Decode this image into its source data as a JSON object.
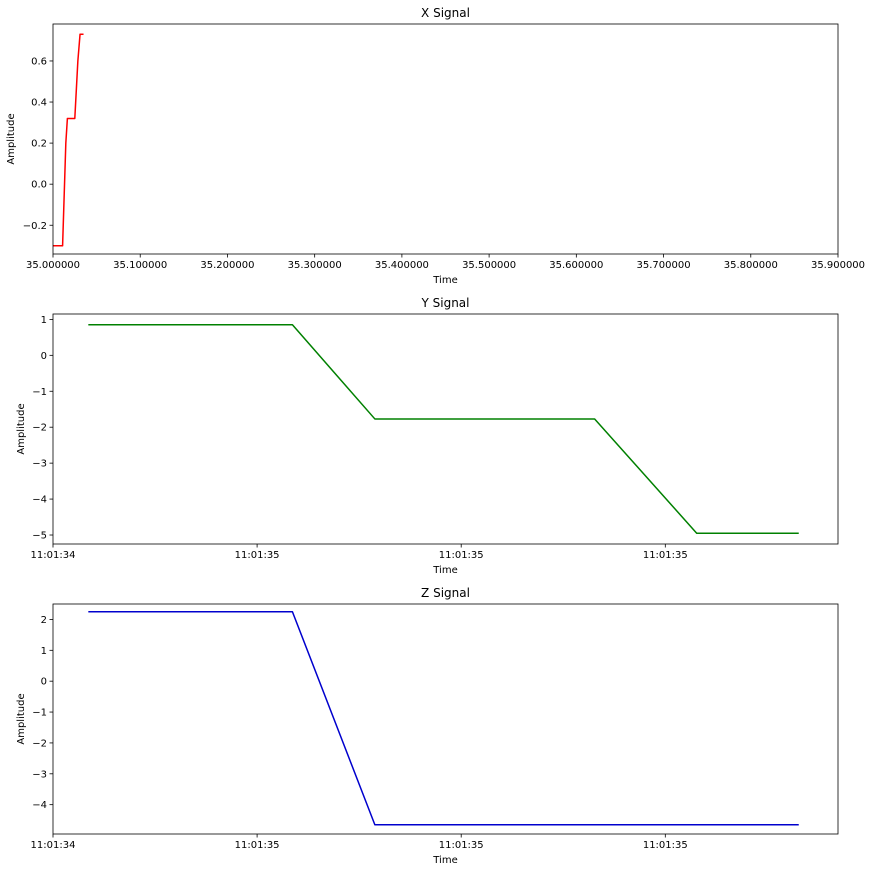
{
  "chart_data": [
    {
      "type": "line",
      "title": "X Signal",
      "xlabel": "Time",
      "ylabel": "Amplitude",
      "xlim": [
        35.0,
        35.9
      ],
      "ylim": [
        -0.34,
        0.78
      ],
      "x_ticks": [
        35.0,
        35.1,
        35.2,
        35.3,
        35.4,
        35.5,
        35.6,
        35.7,
        35.8,
        35.9
      ],
      "x_tick_labels": [
        "35.000000",
        "35.100000",
        "35.200000",
        "35.300000",
        "35.400000",
        "35.500000",
        "35.600000",
        "35.700000",
        "35.800000",
        "35.900000"
      ],
      "y_ticks": [
        -0.2,
        0.0,
        0.2,
        0.4,
        0.6
      ],
      "y_tick_labels": [
        "−0.2",
        "0.0",
        "0.2",
        "0.4",
        "0.6"
      ],
      "grid": false,
      "color": "#ff0000",
      "series": [
        {
          "x": [
            35.0,
            35.011,
            35.0147,
            35.0165,
            35.025,
            35.0285,
            35.031,
            35.035
          ],
          "y": [
            -0.3,
            -0.3,
            0.2,
            0.32,
            0.32,
            0.6,
            0.73,
            0.73
          ]
        }
      ]
    },
    {
      "type": "line",
      "title": "Y Signal",
      "xlabel": "Time",
      "ylabel": "Amplitude",
      "xlim": [
        0.0,
        1.0
      ],
      "ylim": [
        -5.25,
        1.15
      ],
      "x_ticks": [
        0.0,
        0.26,
        0.52,
        0.78
      ],
      "x_tick_labels": [
        "11:01:34",
        "11:01:35",
        "11:01:35",
        "11:01:35"
      ],
      "y_ticks": [
        -5,
        -4,
        -3,
        -2,
        -1,
        0,
        1
      ],
      "y_tick_labels": [
        "−5",
        "−4",
        "−3",
        "−2",
        "−1",
        "0",
        "1"
      ],
      "grid": false,
      "color": "#008000",
      "series": [
        {
          "x": [
            0.045,
            0.305,
            0.41,
            0.69,
            0.82,
            0.95
          ],
          "y": [
            0.85,
            0.85,
            -1.77,
            -1.77,
            -4.95,
            -4.95
          ]
        }
      ]
    },
    {
      "type": "line",
      "title": "Z Signal",
      "xlabel": "Time",
      "ylabel": "Amplitude",
      "xlim": [
        0.0,
        1.0
      ],
      "ylim": [
        -4.95,
        2.5
      ],
      "x_ticks": [
        0.0,
        0.26,
        0.52,
        0.78
      ],
      "x_tick_labels": [
        "11:01:34",
        "11:01:35",
        "11:01:35",
        "11:01:35"
      ],
      "y_ticks": [
        -4,
        -3,
        -2,
        -1,
        0,
        1,
        2
      ],
      "y_tick_labels": [
        "−4",
        "−3",
        "−2",
        "−1",
        "0",
        "1",
        "2"
      ],
      "grid": false,
      "color": "#0000cd",
      "series": [
        {
          "x": [
            0.045,
            0.305,
            0.41,
            0.95
          ],
          "y": [
            2.25,
            2.25,
            -4.65,
            -4.65
          ]
        }
      ]
    }
  ]
}
